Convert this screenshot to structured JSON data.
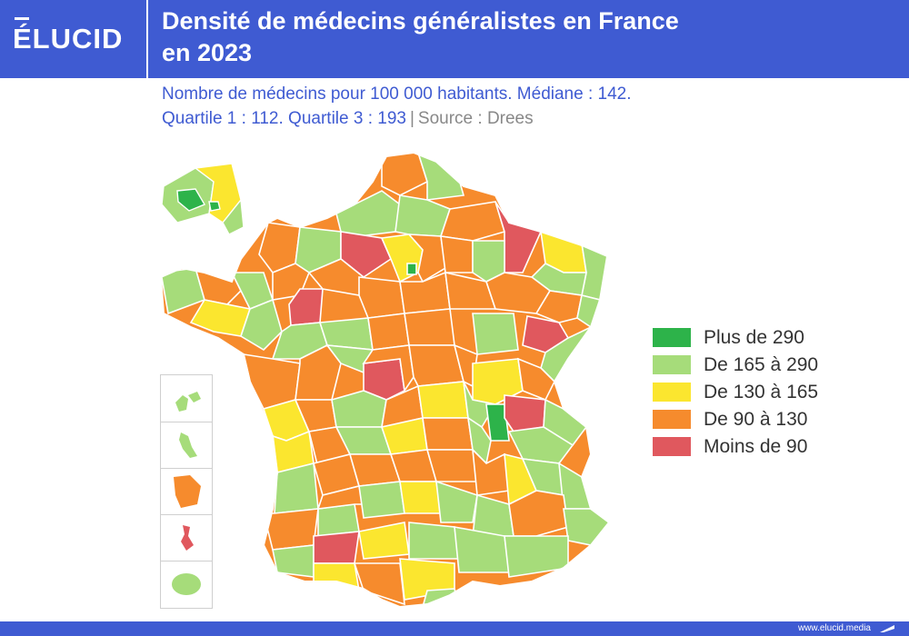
{
  "header": {
    "logo": "ÉLUCID",
    "title_line1": "Densité de médecins généralistes en France",
    "title_line2": "en 2023"
  },
  "subtitle": {
    "line1": "Nombre de médecins pour 100 000 habitants. Médiane : 142.",
    "line2": "Quartile 1 : 112. Quartile 3 : 193",
    "separator": "|",
    "source": "Source : Drees"
  },
  "legend": [
    {
      "label": "Plus de 290",
      "color": "#2db34a"
    },
    {
      "label": "De 165 à 290",
      "color": "#a6dc7a"
    },
    {
      "label": "De 130 à 165",
      "color": "#fbe62f"
    },
    {
      "label": "De 90 à 130",
      "color": "#f68b2d"
    },
    {
      "label": "Moins de 90",
      "color": "#e0585e"
    }
  ],
  "colors": {
    "brand": "#3f5bd2",
    "border": "#ffffff"
  },
  "footer": {
    "url": "www.elucid.media"
  }
}
